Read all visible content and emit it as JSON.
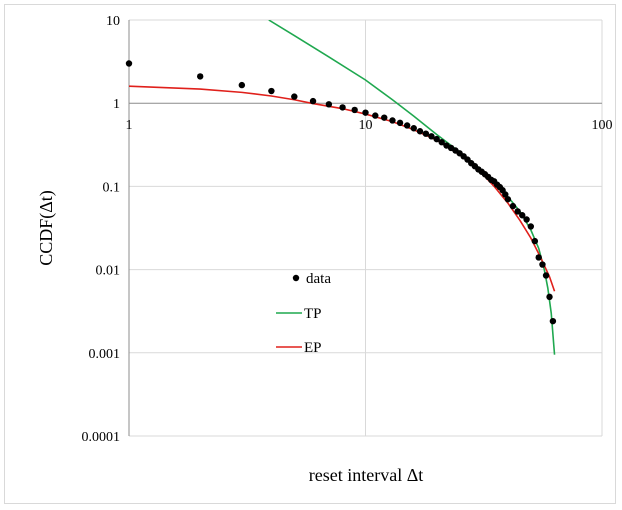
{
  "chart_data": {
    "type": "scatter",
    "title": "",
    "xlabel": "reset interval Δt",
    "ylabel": "CCDF(Δt)",
    "x_scale": "log",
    "y_scale": "log",
    "xlim": [
      1,
      100
    ],
    "ylim": [
      0.0001,
      10
    ],
    "x_ticks": [
      "1",
      "10",
      "100"
    ],
    "y_ticks": [
      "10",
      "1",
      "0.1",
      "0.01",
      "0.001",
      "0.0001"
    ],
    "grid": true,
    "legend_position": "center-left",
    "series": [
      {
        "name": "data",
        "kind": "scatter",
        "color": "#000000",
        "x": [
          1,
          2,
          3,
          4,
          5,
          6,
          7,
          8,
          9,
          10,
          11,
          12,
          13,
          14,
          15,
          16,
          17,
          18,
          19,
          20,
          21,
          22,
          23,
          24,
          25,
          26,
          27,
          28,
          29,
          30,
          31,
          32,
          33,
          34,
          35,
          36,
          37,
          38,
          39,
          40,
          42,
          44,
          46,
          48,
          50,
          52,
          54,
          56,
          58,
          60,
          62
        ],
        "y": [
          3.0,
          2.1,
          1.65,
          1.4,
          1.2,
          1.06,
          0.97,
          0.89,
          0.83,
          0.77,
          0.71,
          0.67,
          0.62,
          0.58,
          0.54,
          0.5,
          0.46,
          0.43,
          0.4,
          0.37,
          0.34,
          0.31,
          0.29,
          0.27,
          0.25,
          0.23,
          0.21,
          0.19,
          0.175,
          0.16,
          0.15,
          0.14,
          0.13,
          0.12,
          0.115,
          0.105,
          0.098,
          0.09,
          0.08,
          0.07,
          0.058,
          0.05,
          0.045,
          0.04,
          0.033,
          0.022,
          0.014,
          0.0115,
          0.0085,
          0.0047,
          0.0024
        ]
      },
      {
        "name": "TP",
        "kind": "line",
        "color": "#1fa84f",
        "x": [
          3.9,
          5,
          7,
          10,
          13,
          16,
          20,
          25,
          30,
          35,
          40,
          45,
          50,
          54,
          57,
          59,
          61,
          63
        ],
        "y": [
          10,
          6.5,
          3.6,
          1.9,
          1.1,
          0.7,
          0.42,
          0.26,
          0.17,
          0.115,
          0.075,
          0.05,
          0.03,
          0.018,
          0.01,
          0.006,
          0.003,
          0.00095
        ]
      },
      {
        "name": "EP",
        "kind": "line",
        "color": "#e0201b",
        "x": [
          1,
          2,
          3,
          4,
          5,
          6,
          8,
          10,
          13,
          16,
          20,
          25,
          30,
          35,
          40,
          45,
          50,
          55,
          60,
          63
        ],
        "y": [
          1.6,
          1.48,
          1.35,
          1.22,
          1.1,
          0.99,
          0.86,
          0.74,
          0.6,
          0.48,
          0.36,
          0.24,
          0.16,
          0.1,
          0.063,
          0.039,
          0.024,
          0.014,
          0.0082,
          0.0055
        ]
      }
    ]
  }
}
